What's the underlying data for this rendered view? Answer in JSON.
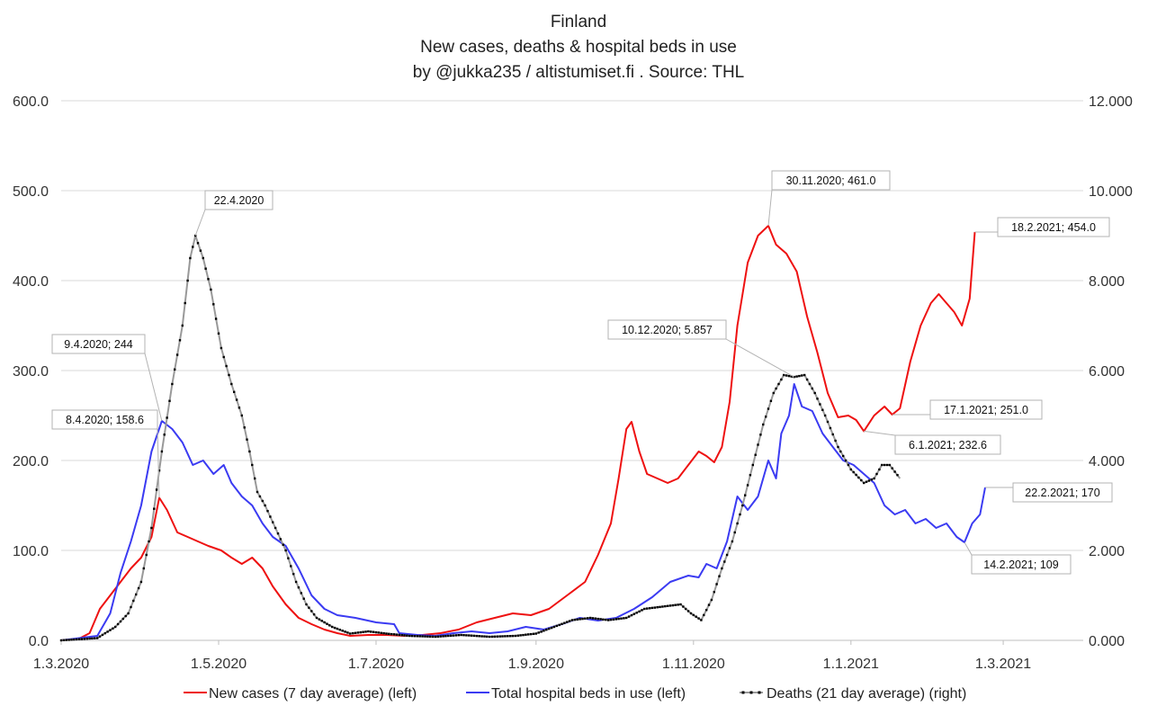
{
  "colors": {
    "cases": "#ee1111",
    "hospital": "#3b3bf2",
    "deaths_line": "#999999",
    "deaths_marker": "#000000",
    "grid": "#d9d9d9",
    "axis": "#bfbfbf"
  },
  "chart_data": {
    "type": "line",
    "title": [
      "Finland",
      "New cases, deaths & hospital beds in use",
      "by @jukka235  / altistumiset.fi . Source: THL"
    ],
    "xlabel": "",
    "ylabel": "",
    "x_range": [
      "2020-03-01",
      "2021-04-01"
    ],
    "x_ticks": [
      {
        "date": "2020-03-01",
        "label": "1.3.2020"
      },
      {
        "date": "2020-05-01",
        "label": "1.5.2020"
      },
      {
        "date": "2020-07-01",
        "label": "1.7.2020"
      },
      {
        "date": "2020-09-01",
        "label": "1.9.2020"
      },
      {
        "date": "2020-11-01",
        "label": "1.11.2020"
      },
      {
        "date": "2021-01-01",
        "label": "1.1.2021"
      },
      {
        "date": "2021-03-01",
        "label": "1.3.2021"
      }
    ],
    "y_left": {
      "range": [
        0,
        600
      ],
      "ticks": [
        {
          "value": 0,
          "label": "0.0"
        },
        {
          "value": 100,
          "label": "100.0"
        },
        {
          "value": 200,
          "label": "200.0"
        },
        {
          "value": 300,
          "label": "300.0"
        },
        {
          "value": 400,
          "label": "400.0"
        },
        {
          "value": 500,
          "label": "500.0"
        },
        {
          "value": 600,
          "label": "600.0"
        }
      ]
    },
    "y_right": {
      "range": [
        0,
        12
      ],
      "ticks": [
        {
          "value": 0,
          "label": "0.000"
        },
        {
          "value": 2,
          "label": "2.000"
        },
        {
          "value": 4,
          "label": "4.000"
        },
        {
          "value": 6,
          "label": "6.000"
        },
        {
          "value": 8,
          "label": "8.000"
        },
        {
          "value": 10,
          "label": "10.000"
        },
        {
          "value": 12,
          "label": "12.000"
        }
      ]
    },
    "grid": true,
    "legend_position": "bottom",
    "series": [
      {
        "name": "New cases (7 day average) (left)",
        "axis": "left",
        "color": "#ee1111",
        "points": [
          [
            "2020-03-01",
            0
          ],
          [
            "2020-03-08",
            2
          ],
          [
            "2020-03-12",
            8
          ],
          [
            "2020-03-16",
            35
          ],
          [
            "2020-03-20",
            50
          ],
          [
            "2020-03-24",
            65
          ],
          [
            "2020-03-28",
            80
          ],
          [
            "2020-04-01",
            92
          ],
          [
            "2020-04-05",
            115
          ],
          [
            "2020-04-08",
            158.6
          ],
          [
            "2020-04-11",
            145
          ],
          [
            "2020-04-15",
            120
          ],
          [
            "2020-04-19",
            115
          ],
          [
            "2020-04-23",
            110
          ],
          [
            "2020-04-27",
            105
          ],
          [
            "2020-05-02",
            100
          ],
          [
            "2020-05-06",
            92
          ],
          [
            "2020-05-10",
            85
          ],
          [
            "2020-05-14",
            92
          ],
          [
            "2020-05-18",
            80
          ],
          [
            "2020-05-22",
            60
          ],
          [
            "2020-05-27",
            40
          ],
          [
            "2020-06-01",
            25
          ],
          [
            "2020-06-06",
            18
          ],
          [
            "2020-06-11",
            12
          ],
          [
            "2020-06-16",
            8
          ],
          [
            "2020-06-21",
            5
          ],
          [
            "2020-06-28",
            6
          ],
          [
            "2020-07-05",
            6
          ],
          [
            "2020-07-12",
            5
          ],
          [
            "2020-07-19",
            6
          ],
          [
            "2020-07-26",
            8
          ],
          [
            "2020-08-02",
            12
          ],
          [
            "2020-08-09",
            20
          ],
          [
            "2020-08-16",
            25
          ],
          [
            "2020-08-23",
            30
          ],
          [
            "2020-08-30",
            28
          ],
          [
            "2020-09-06",
            35
          ],
          [
            "2020-09-13",
            50
          ],
          [
            "2020-09-20",
            65
          ],
          [
            "2020-09-25",
            95
          ],
          [
            "2020-09-30",
            130
          ],
          [
            "2020-10-03",
            180
          ],
          [
            "2020-10-06",
            235
          ],
          [
            "2020-10-08",
            243
          ],
          [
            "2020-10-11",
            210
          ],
          [
            "2020-10-14",
            185
          ],
          [
            "2020-10-18",
            180
          ],
          [
            "2020-10-22",
            175
          ],
          [
            "2020-10-26",
            180
          ],
          [
            "2020-10-30",
            195
          ],
          [
            "2020-11-03",
            210
          ],
          [
            "2020-11-06",
            205
          ],
          [
            "2020-11-09",
            198
          ],
          [
            "2020-11-12",
            215
          ],
          [
            "2020-11-15",
            265
          ],
          [
            "2020-11-18",
            350
          ],
          [
            "2020-11-22",
            420
          ],
          [
            "2020-11-26",
            450
          ],
          [
            "2020-11-30",
            461
          ],
          [
            "2020-12-03",
            440
          ],
          [
            "2020-12-07",
            430
          ],
          [
            "2020-12-11",
            410
          ],
          [
            "2020-12-15",
            360
          ],
          [
            "2020-12-19",
            320
          ],
          [
            "2020-12-23",
            275
          ],
          [
            "2020-12-27",
            248
          ],
          [
            "2020-12-31",
            250
          ],
          [
            "2021-01-03",
            245
          ],
          [
            "2021-01-06",
            232.6
          ],
          [
            "2021-01-10",
            250
          ],
          [
            "2021-01-14",
            260
          ],
          [
            "2021-01-17",
            251
          ],
          [
            "2021-01-20",
            258
          ],
          [
            "2021-01-24",
            310
          ],
          [
            "2021-01-28",
            350
          ],
          [
            "2021-02-01",
            375
          ],
          [
            "2021-02-04",
            385
          ],
          [
            "2021-02-07",
            375
          ],
          [
            "2021-02-10",
            365
          ],
          [
            "2021-02-13",
            350
          ],
          [
            "2021-02-16",
            380
          ],
          [
            "2021-02-18",
            454
          ]
        ]
      },
      {
        "name": "Total hospital beds in use (left)",
        "axis": "left",
        "color": "#3b3bf2",
        "points": [
          [
            "2020-03-01",
            0
          ],
          [
            "2020-03-15",
            5
          ],
          [
            "2020-03-20",
            30
          ],
          [
            "2020-03-24",
            75
          ],
          [
            "2020-03-28",
            110
          ],
          [
            "2020-04-01",
            150
          ],
          [
            "2020-04-05",
            210
          ],
          [
            "2020-04-09",
            244
          ],
          [
            "2020-04-13",
            235
          ],
          [
            "2020-04-17",
            220
          ],
          [
            "2020-04-21",
            195
          ],
          [
            "2020-04-25",
            200
          ],
          [
            "2020-04-29",
            185
          ],
          [
            "2020-05-03",
            195
          ],
          [
            "2020-05-06",
            175
          ],
          [
            "2020-05-10",
            160
          ],
          [
            "2020-05-14",
            150
          ],
          [
            "2020-05-18",
            130
          ],
          [
            "2020-05-22",
            115
          ],
          [
            "2020-05-27",
            105
          ],
          [
            "2020-06-01",
            80
          ],
          [
            "2020-06-06",
            50
          ],
          [
            "2020-06-11",
            35
          ],
          [
            "2020-06-16",
            28
          ],
          [
            "2020-06-23",
            25
          ],
          [
            "2020-07-01",
            20
          ],
          [
            "2020-07-08",
            18
          ],
          [
            "2020-07-10",
            8
          ],
          [
            "2020-07-17",
            6
          ],
          [
            "2020-07-24",
            5
          ],
          [
            "2020-07-31",
            8
          ],
          [
            "2020-08-07",
            10
          ],
          [
            "2020-08-14",
            8
          ],
          [
            "2020-08-21",
            10
          ],
          [
            "2020-08-28",
            15
          ],
          [
            "2020-09-04",
            12
          ],
          [
            "2020-09-11",
            18
          ],
          [
            "2020-09-18",
            25
          ],
          [
            "2020-09-25",
            22
          ],
          [
            "2020-10-02",
            25
          ],
          [
            "2020-10-09",
            35
          ],
          [
            "2020-10-16",
            48
          ],
          [
            "2020-10-23",
            65
          ],
          [
            "2020-10-30",
            72
          ],
          [
            "2020-11-03",
            70
          ],
          [
            "2020-11-06",
            85
          ],
          [
            "2020-11-10",
            80
          ],
          [
            "2020-11-14",
            110
          ],
          [
            "2020-11-18",
            160
          ],
          [
            "2020-11-22",
            145
          ],
          [
            "2020-11-26",
            160
          ],
          [
            "2020-11-30",
            200
          ],
          [
            "2020-12-03",
            180
          ],
          [
            "2020-12-05",
            230
          ],
          [
            "2020-12-08",
            250
          ],
          [
            "2020-12-10",
            285
          ],
          [
            "2020-12-13",
            260
          ],
          [
            "2020-12-17",
            255
          ],
          [
            "2020-12-21",
            230
          ],
          [
            "2020-12-25",
            215
          ],
          [
            "2020-12-29",
            200
          ],
          [
            "2021-01-02",
            195
          ],
          [
            "2021-01-06",
            185
          ],
          [
            "2021-01-10",
            175
          ],
          [
            "2021-01-14",
            150
          ],
          [
            "2021-01-18",
            140
          ],
          [
            "2021-01-22",
            145
          ],
          [
            "2021-01-26",
            130
          ],
          [
            "2021-01-30",
            135
          ],
          [
            "2021-02-03",
            125
          ],
          [
            "2021-02-07",
            130
          ],
          [
            "2021-02-11",
            115
          ],
          [
            "2021-02-14",
            109
          ],
          [
            "2021-02-17",
            130
          ],
          [
            "2021-02-20",
            140
          ],
          [
            "2021-02-22",
            170
          ]
        ]
      },
      {
        "name": "Deaths (21 day average) (right)",
        "axis": "right",
        "color": "#999999",
        "points": [
          [
            "2020-03-01",
            0
          ],
          [
            "2020-03-15",
            0.05
          ],
          [
            "2020-03-22",
            0.3
          ],
          [
            "2020-03-27",
            0.6
          ],
          [
            "2020-04-01",
            1.3
          ],
          [
            "2020-04-05",
            2.5
          ],
          [
            "2020-04-09",
            4.2
          ],
          [
            "2020-04-13",
            5.7
          ],
          [
            "2020-04-17",
            7.0
          ],
          [
            "2020-04-20",
            8.5
          ],
          [
            "2020-04-22",
            9.0
          ],
          [
            "2020-04-25",
            8.5
          ],
          [
            "2020-04-28",
            7.8
          ],
          [
            "2020-05-02",
            6.5
          ],
          [
            "2020-05-06",
            5.7
          ],
          [
            "2020-05-10",
            5.0
          ],
          [
            "2020-05-13",
            4.2
          ],
          [
            "2020-05-16",
            3.3
          ],
          [
            "2020-05-19",
            3.0
          ],
          [
            "2020-05-23",
            2.5
          ],
          [
            "2020-05-27",
            2.0
          ],
          [
            "2020-05-31",
            1.3
          ],
          [
            "2020-06-04",
            0.8
          ],
          [
            "2020-06-08",
            0.5
          ],
          [
            "2020-06-14",
            0.3
          ],
          [
            "2020-06-21",
            0.15
          ],
          [
            "2020-06-28",
            0.2
          ],
          [
            "2020-07-05",
            0.15
          ],
          [
            "2020-07-14",
            0.1
          ],
          [
            "2020-07-24",
            0.08
          ],
          [
            "2020-08-03",
            0.12
          ],
          [
            "2020-08-14",
            0.08
          ],
          [
            "2020-08-24",
            0.1
          ],
          [
            "2020-09-01",
            0.15
          ],
          [
            "2020-09-08",
            0.3
          ],
          [
            "2020-09-15",
            0.45
          ],
          [
            "2020-09-22",
            0.5
          ],
          [
            "2020-09-29",
            0.45
          ],
          [
            "2020-10-06",
            0.5
          ],
          [
            "2020-10-13",
            0.7
          ],
          [
            "2020-10-20",
            0.75
          ],
          [
            "2020-10-27",
            0.8
          ],
          [
            "2020-10-31",
            0.6
          ],
          [
            "2020-11-04",
            0.45
          ],
          [
            "2020-11-08",
            0.9
          ],
          [
            "2020-11-12",
            1.6
          ],
          [
            "2020-11-16",
            2.2
          ],
          [
            "2020-11-20",
            3.0
          ],
          [
            "2020-11-24",
            3.9
          ],
          [
            "2020-11-28",
            4.8
          ],
          [
            "2020-12-02",
            5.5
          ],
          [
            "2020-12-06",
            5.9
          ],
          [
            "2020-12-10",
            5.857
          ],
          [
            "2020-12-14",
            5.9
          ],
          [
            "2020-12-18",
            5.5
          ],
          [
            "2020-12-22",
            5.0
          ],
          [
            "2020-12-27",
            4.3
          ],
          [
            "2021-01-01",
            3.8
          ],
          [
            "2021-01-06",
            3.5
          ],
          [
            "2021-01-10",
            3.6
          ],
          [
            "2021-01-13",
            3.9
          ],
          [
            "2021-01-16",
            3.9
          ],
          [
            "2021-01-20",
            3.6
          ]
        ]
      }
    ],
    "annotations": [
      {
        "text": "22.4.2020",
        "series": 2,
        "point_date": "2020-04-22"
      },
      {
        "text": "9.4.2020; 244",
        "series": 1,
        "point_date": "2020-04-09"
      },
      {
        "text": "8.4.2020; 158.6",
        "series": 0,
        "point_date": "2020-04-08"
      },
      {
        "text": "30.11.2020; 461.0",
        "series": 0,
        "point_date": "2020-11-30"
      },
      {
        "text": "10.12.2020; 5.857",
        "series": 2,
        "point_date": "2020-12-10"
      },
      {
        "text": "18.2.2021; 454.0",
        "series": 0,
        "point_date": "2021-02-18"
      },
      {
        "text": "17.1.2021; 251.0",
        "series": 0,
        "point_date": "2021-01-17"
      },
      {
        "text": "6.1.2021; 232.6",
        "series": 0,
        "point_date": "2021-01-06"
      },
      {
        "text": "22.2.2021; 170",
        "series": 1,
        "point_date": "2021-02-22"
      },
      {
        "text": "14.2.2021; 109",
        "series": 1,
        "point_date": "2021-02-14"
      }
    ]
  }
}
